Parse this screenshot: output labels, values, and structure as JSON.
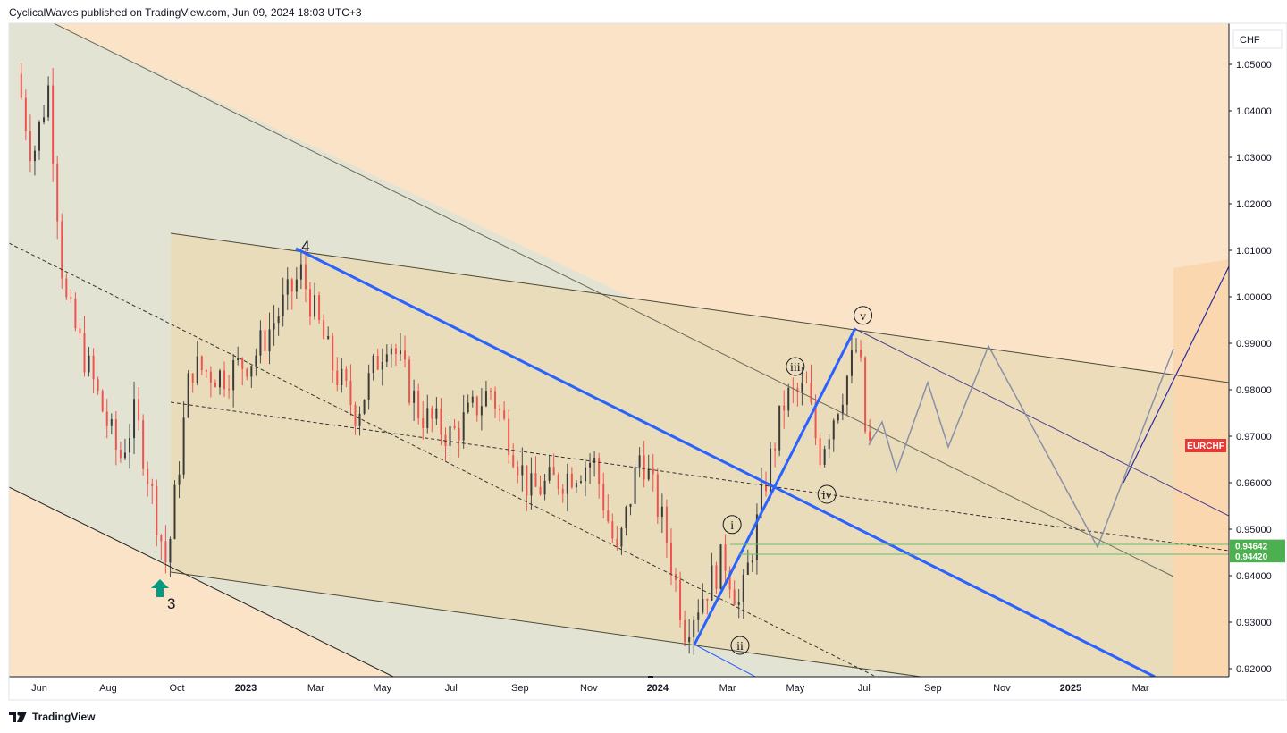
{
  "header": {
    "text": "CyclicalWaves published on TradingView.com, Jun 09, 2024 18:03 UTC+3"
  },
  "footer": {
    "brand": "TradingView"
  },
  "chart_data": {
    "type": "candlestick",
    "symbol": "EURCHF",
    "currency_label": "CHF",
    "y_ticks": [
      "1.05000",
      "1.04000",
      "1.03000",
      "1.02000",
      "1.01000",
      "1.00000",
      "0.99000",
      "0.98000",
      "0.97000",
      "0.96000",
      "0.95000",
      "0.94000",
      "0.93000",
      "0.92000"
    ],
    "x_ticks": [
      "Jun",
      "Aug",
      "Oct",
      "2023",
      "Mar",
      "May",
      "Jul",
      "Sep",
      "Nov",
      "2024",
      "Mar",
      "May",
      "Jul",
      "Sep",
      "Nov",
      "2025",
      "Mar"
    ],
    "x_range": [
      "2022-05",
      "2025-04"
    ],
    "y_range": [
      0.9175,
      1.0585
    ],
    "last_price": {
      "label": "EURCHF",
      "value": 0.97
    },
    "horizontal_levels": [
      {
        "value": 0.94642,
        "label": "0.94642",
        "color": "#4caf50"
      },
      {
        "value": 0.9442,
        "label": "0.94420",
        "color": "#4caf50"
      }
    ],
    "wave_labels": [
      {
        "label": "3",
        "date": "2022-09-26",
        "price": 0.934
      },
      {
        "label": "4",
        "date": "2023-01-23",
        "price": 1.011
      },
      {
        "label": "i",
        "date": "2024-02-05",
        "price": 0.951
      },
      {
        "label": "ii",
        "date": "2024-02-12",
        "price": 0.925
      },
      {
        "label": "iii",
        "date": "2024-04-01",
        "price": 0.985
      },
      {
        "label": "iv",
        "date": "2024-04-29",
        "price": 0.9575
      },
      {
        "label": "v",
        "date": "2024-05-31",
        "price": 0.996
      }
    ],
    "grid": false,
    "colors": {
      "up": "#26a69a",
      "down": "#ef5350",
      "channel_blue": "#2962ff",
      "arrow": "#089981"
    }
  }
}
